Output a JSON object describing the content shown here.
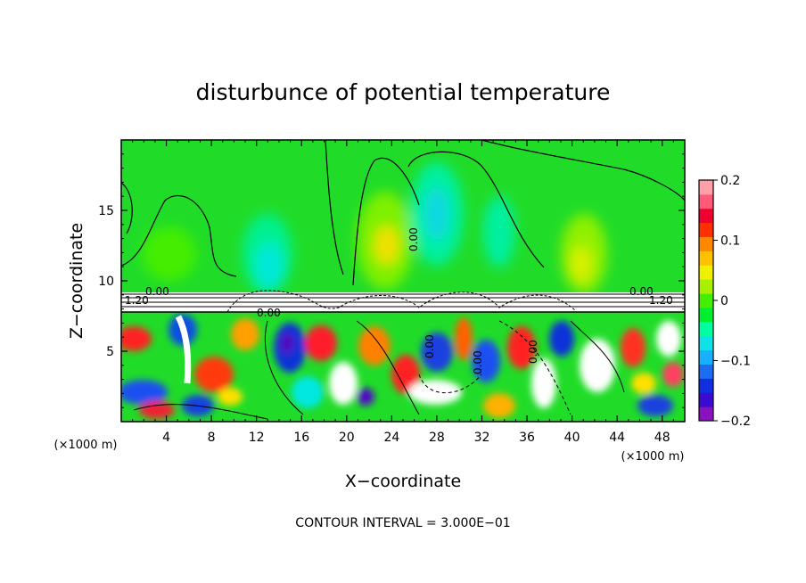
{
  "chart_data": {
    "type": "heatmap",
    "title": "disturbunce of potential temperature",
    "xlabel": "X−coordinate",
    "ylabel": "Z−coordinate",
    "x_unit": "(×1000 m)",
    "y_unit": "(×1000 m)",
    "xlim": [
      0,
      50
    ],
    "ylim": [
      0,
      20
    ],
    "x_ticks": [
      4,
      8,
      12,
      16,
      20,
      24,
      28,
      32,
      36,
      40,
      44,
      48
    ],
    "x_tick_labels": [
      "4",
      "8",
      "12",
      "16",
      "20",
      "24",
      "28",
      "32",
      "36",
      "40",
      "44",
      "48"
    ],
    "y_ticks": [
      5,
      10,
      15
    ],
    "y_tick_labels": [
      "5",
      "10",
      "15"
    ],
    "colorbar": {
      "min": -0.2,
      "max": 0.2,
      "ticks": [
        0.2,
        0.1,
        0,
        -0.1,
        -0.2
      ],
      "tick_labels": [
        "0.2",
        "0.1",
        "0",
        "−0.1",
        "−0.2"
      ],
      "colors": [
        "#8a10c0",
        "#3a0ad0",
        "#1030e0",
        "#1c6cf0",
        "#18b0ff",
        "#10e0e8",
        "#00ffa0",
        "#00ee30",
        "#44ee00",
        "#a8f000",
        "#f0f000",
        "#ffc000",
        "#ff8800",
        "#ff3000",
        "#ee0030",
        "#ff5a78",
        "#ffa0a8"
      ]
    },
    "contour_labels": [
      "0.00",
      "0.00",
      "0.00",
      "1.20",
      "0.00",
      "1.20",
      "0.00",
      "0.00",
      "0.00"
    ],
    "annotation": "CONTOUR INTERVAL = 3.000E−01",
    "plot_background": "#22dd22",
    "boundary_layer_top": 8
  }
}
